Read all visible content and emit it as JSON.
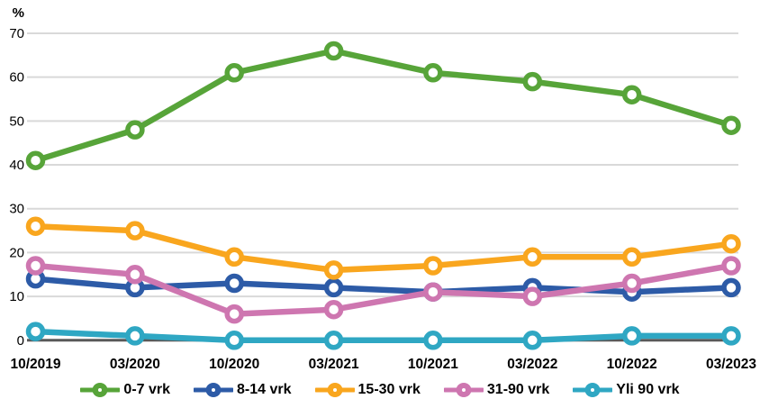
{
  "chart_data": {
    "type": "line",
    "title": "",
    "ylabel": "%",
    "xlabel": "",
    "grid": true,
    "legend_position": "bottom",
    "ylim": [
      0,
      70
    ],
    "y_ticks": [
      0,
      10,
      20,
      30,
      40,
      50,
      60,
      70
    ],
    "categories": [
      "10/2019",
      "03/2020",
      "10/2020",
      "03/2021",
      "10/2021",
      "03/2022",
      "10/2022",
      "03/2023"
    ],
    "series": [
      {
        "name": "0-7 vrk",
        "color": "#57A439",
        "values": [
          41,
          48,
          61,
          66,
          61,
          59,
          56,
          49
        ]
      },
      {
        "name": "8-14 vrk",
        "color": "#2D5BA7",
        "values": [
          14,
          12,
          13,
          12,
          11,
          12,
          11,
          12
        ]
      },
      {
        "name": "15-30 vrk",
        "color": "#F9A61E",
        "values": [
          26,
          25,
          19,
          16,
          17,
          19,
          19,
          22
        ]
      },
      {
        "name": "31-90 vrk",
        "color": "#CE76B0",
        "values": [
          17,
          15,
          6,
          7,
          11,
          10,
          13,
          17
        ]
      },
      {
        "name": "Yli 90 vrk",
        "color": "#2FA7C3",
        "values": [
          2,
          1,
          0,
          0,
          0,
          0,
          1,
          1
        ]
      }
    ]
  },
  "style": {
    "gridline_color": "#D9D9D9",
    "zero_line_color": "#595959",
    "tick_text_color": "#000000",
    "xlabel_text_color": "#000000"
  }
}
